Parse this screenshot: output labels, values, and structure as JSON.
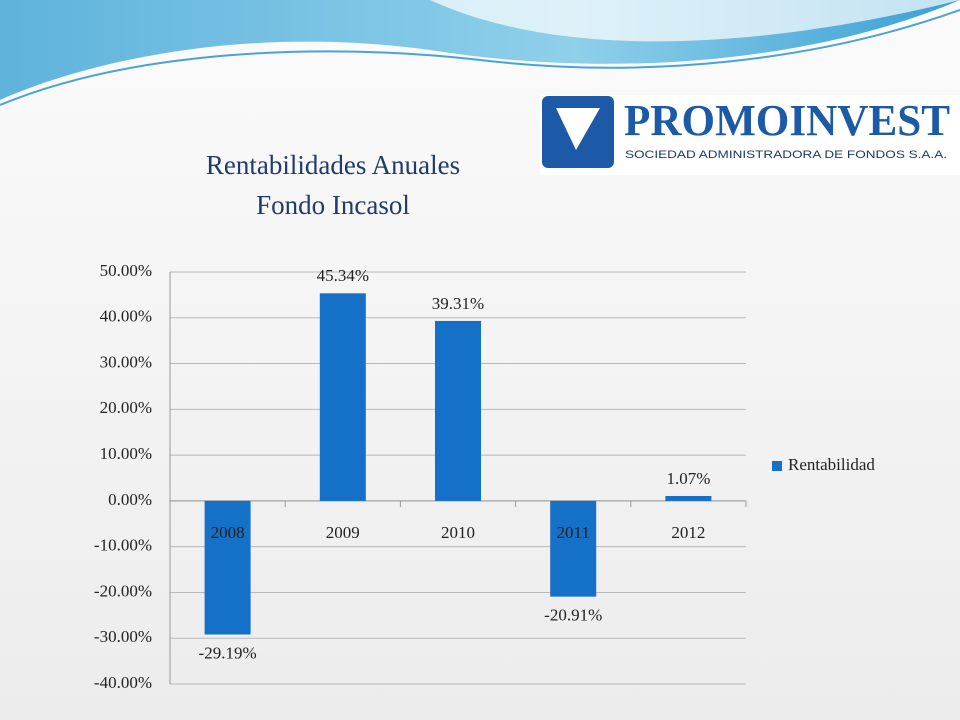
{
  "logo": {
    "name": "PROMOINVEST",
    "tagline": "SOCIEDAD ADMINISTRADORA DE FONDOS S.A.A."
  },
  "chart_data": {
    "type": "bar",
    "title": "Rentabilidades Anuales",
    "subtitle": "Fondo Incasol",
    "categories": [
      "2008",
      "2009",
      "2010",
      "2011",
      "2012"
    ],
    "series": [
      {
        "name": "Rentabilidad",
        "color": "#1570c8",
        "values": [
          -29.19,
          45.34,
          39.31,
          -20.91,
          1.07
        ],
        "value_labels": [
          "-29.19%",
          "45.34%",
          "39.31%",
          "-20.91%",
          "1.07%"
        ]
      }
    ],
    "ylim": [
      -40,
      50
    ],
    "yticks": [
      {
        "value": 50,
        "label": "50.00%"
      },
      {
        "value": 40,
        "label": "40.00%"
      },
      {
        "value": 30,
        "label": "30.00%"
      },
      {
        "value": 20,
        "label": "20.00%"
      },
      {
        "value": 10,
        "label": "10.00%"
      },
      {
        "value": 0,
        "label": "0.00%"
      },
      {
        "value": -10,
        "label": "-10.00%"
      },
      {
        "value": -20,
        "label": "-20.00%"
      },
      {
        "value": -30,
        "label": "-30.00%"
      },
      {
        "value": -40,
        "label": "-40.00%"
      }
    ],
    "grid": true,
    "legend": "right"
  }
}
